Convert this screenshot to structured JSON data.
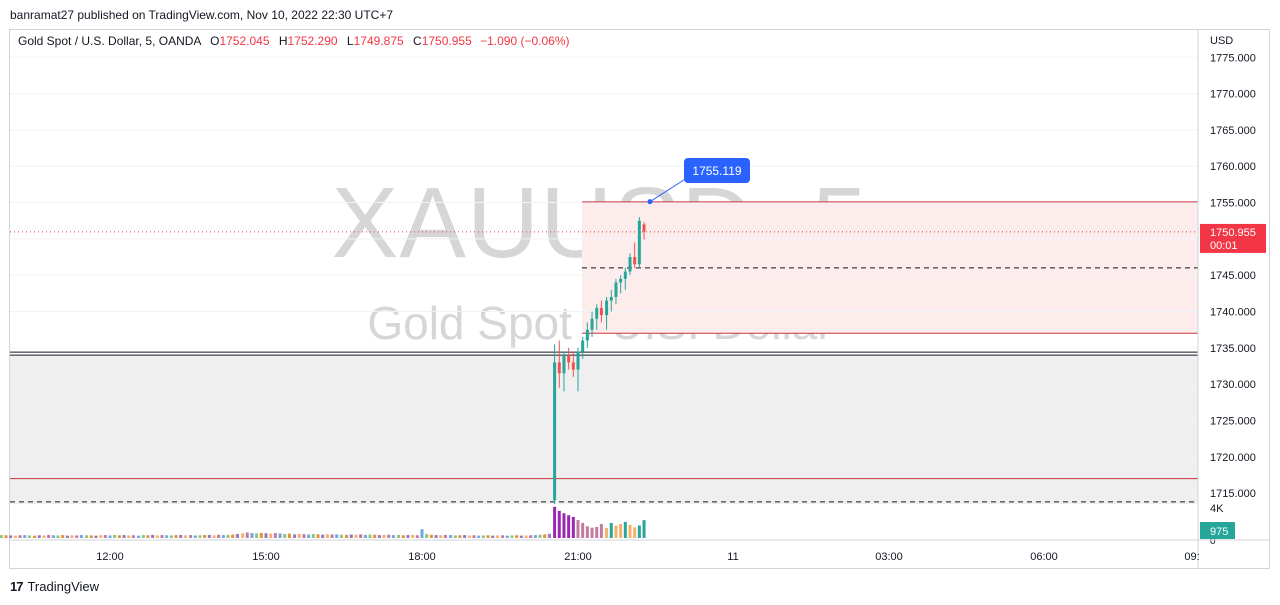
{
  "header": {
    "published_line": "banramat27 published on TradingView.com, Nov 10, 2022 22:30 UTC+7"
  },
  "legend": {
    "symbol": "Gold Spot / U.S. Dollar, 5, OANDA",
    "open_label": "O",
    "open": "1752.045",
    "high_label": "H",
    "high": "1752.290",
    "low_label": "L",
    "low": "1749.875",
    "close_label": "C",
    "close": "1750.955",
    "change": "−1.090 (−0.06%)"
  },
  "watermark": {
    "ticker": "XAUUSD, 5",
    "description": "Gold Spot / U.S. Dollar"
  },
  "footer": {
    "logo": "17",
    "brand": "TradingView"
  },
  "colors": {
    "up": "#26a69a",
    "down": "#ef5350",
    "last_price": "#f23645",
    "callout": "#2962ff",
    "volume_badge": "#26a69a"
  },
  "chart_data": {
    "type": "candlestick",
    "currency": "USD",
    "y_axis_ticks": [
      "1775.000",
      "1770.000",
      "1765.000",
      "1760.000",
      "1755.000",
      "1750.000",
      "1745.000",
      "1740.000",
      "1735.000",
      "1730.000",
      "1725.000",
      "1720.000",
      "1715.000"
    ],
    "ylim": [
      1713.5,
      1776
    ],
    "x_axis_ticks": [
      "12:00",
      "15:00",
      "18:00",
      "21:00",
      "11",
      "03:00",
      "06:00",
      "09:"
    ],
    "last_price": "1750.955",
    "countdown": "00:01",
    "callout_price": "1755.119",
    "volume_axis_label": "4K",
    "volume_axis_zero": "0",
    "last_volume": "975",
    "horizontal_levels": [
      {
        "price": 1755.1,
        "style": "solid",
        "color": "#c9353f"
      },
      {
        "price": 1746.0,
        "style": "dashed",
        "color": "#131722"
      },
      {
        "price": 1737.0,
        "style": "solid",
        "color": "#c9353f"
      },
      {
        "price": 1734.4,
        "style": "solid",
        "color": "#131722"
      },
      {
        "price": 1734.0,
        "style": "solid",
        "color": "#131722"
      },
      {
        "price": 1717.0,
        "style": "solid",
        "color": "#c9353f"
      },
      {
        "price": 1713.8,
        "style": "dashed",
        "color": "#131722"
      }
    ],
    "zones": [
      {
        "from": 1737.0,
        "to": 1755.1,
        "color": "#fdecec"
      },
      {
        "from": 1713.5,
        "to": 1734.0,
        "color": "#efefef"
      }
    ],
    "candles": [
      [
        20.55,
        1714.0,
        1735.5,
        1713.5,
        1733.0
      ],
      [
        20.64,
        1733.0,
        1736.0,
        1729.5,
        1731.5
      ],
      [
        20.73,
        1731.5,
        1734.5,
        1729.0,
        1734.0
      ],
      [
        20.82,
        1734.0,
        1735.0,
        1732.0,
        1733.0
      ],
      [
        20.91,
        1733.0,
        1734.5,
        1731.0,
        1732.0
      ],
      [
        21.0,
        1732.0,
        1735.0,
        1729.0,
        1734.5
      ],
      [
        21.09,
        1734.5,
        1736.5,
        1733.5,
        1736.0
      ],
      [
        21.18,
        1736.0,
        1738.5,
        1735.0,
        1737.5
      ],
      [
        21.27,
        1737.5,
        1740.0,
        1736.5,
        1739.0
      ],
      [
        21.36,
        1739.0,
        1741.0,
        1737.5,
        1740.5
      ],
      [
        21.45,
        1740.5,
        1741.5,
        1738.5,
        1739.5
      ],
      [
        21.55,
        1739.5,
        1742.0,
        1737.5,
        1741.5
      ],
      [
        21.64,
        1741.5,
        1743.0,
        1740.0,
        1742.0
      ],
      [
        21.73,
        1742.0,
        1744.5,
        1741.0,
        1744.0
      ],
      [
        21.82,
        1744.0,
        1745.0,
        1742.5,
        1744.5
      ],
      [
        21.91,
        1744.5,
        1746.0,
        1743.0,
        1745.5
      ],
      [
        22.0,
        1745.5,
        1748.0,
        1745.0,
        1747.5
      ],
      [
        22.09,
        1747.5,
        1749.5,
        1746.0,
        1746.5
      ],
      [
        22.18,
        1746.5,
        1753.0,
        1746.0,
        1752.5
      ],
      [
        22.27,
        1752.0,
        1752.3,
        1749.9,
        1751.0
      ]
    ],
    "volumes": [
      [
        8.0,
        180
      ],
      [
        8.09,
        140
      ],
      [
        8.18,
        160
      ],
      [
        8.27,
        120
      ],
      [
        8.36,
        150
      ],
      [
        8.45,
        130
      ],
      [
        8.55,
        170
      ],
      [
        8.64,
        150
      ],
      [
        8.73,
        140
      ],
      [
        8.82,
        160
      ],
      [
        8.91,
        130
      ],
      [
        9.0,
        150
      ],
      [
        9.09,
        140
      ],
      [
        9.18,
        120
      ],
      [
        9.27,
        160
      ],
      [
        9.36,
        150
      ],
      [
        9.45,
        130
      ],
      [
        9.55,
        170
      ],
      [
        9.64,
        140
      ],
      [
        9.73,
        150
      ],
      [
        9.82,
        120
      ],
      [
        9.91,
        160
      ],
      [
        10.0,
        150
      ],
      [
        10.09,
        140
      ],
      [
        10.18,
        130
      ],
      [
        10.27,
        150
      ],
      [
        10.36,
        160
      ],
      [
        10.45,
        140
      ],
      [
        10.55,
        130
      ],
      [
        10.64,
        150
      ],
      [
        10.73,
        140
      ],
      [
        10.82,
        170
      ],
      [
        10.91,
        150
      ],
      [
        11.0,
        140
      ],
      [
        11.09,
        160
      ],
      [
        11.18,
        130
      ],
      [
        11.27,
        150
      ],
      [
        11.36,
        140
      ],
      [
        11.45,
        160
      ],
      [
        11.55,
        150
      ],
      [
        11.64,
        140
      ],
      [
        11.73,
        130
      ],
      [
        11.82,
        150
      ],
      [
        11.91,
        160
      ],
      [
        12.0,
        140
      ],
      [
        12.09,
        170
      ],
      [
        12.18,
        150
      ],
      [
        12.27,
        160
      ],
      [
        12.36,
        140
      ],
      [
        12.45,
        150
      ],
      [
        12.55,
        130
      ],
      [
        12.64,
        160
      ],
      [
        12.73,
        150
      ],
      [
        12.82,
        170
      ],
      [
        12.91,
        140
      ],
      [
        13.0,
        160
      ],
      [
        13.09,
        150
      ],
      [
        13.18,
        140
      ],
      [
        13.27,
        160
      ],
      [
        13.36,
        170
      ],
      [
        13.45,
        150
      ],
      [
        13.55,
        160
      ],
      [
        13.64,
        140
      ],
      [
        13.73,
        150
      ],
      [
        13.82,
        160
      ],
      [
        13.91,
        170
      ],
      [
        14.0,
        150
      ],
      [
        14.09,
        180
      ],
      [
        14.18,
        160
      ],
      [
        14.27,
        170
      ],
      [
        14.36,
        190
      ],
      [
        14.45,
        220
      ],
      [
        14.55,
        260
      ],
      [
        14.64,
        300
      ],
      [
        14.73,
        270
      ],
      [
        14.82,
        250
      ],
      [
        14.91,
        280
      ],
      [
        15.0,
        260
      ],
      [
        15.09,
        240
      ],
      [
        15.18,
        270
      ],
      [
        15.27,
        250
      ],
      [
        15.36,
        220
      ],
      [
        15.45,
        240
      ],
      [
        15.55,
        200
      ],
      [
        15.64,
        230
      ],
      [
        15.73,
        210
      ],
      [
        15.82,
        190
      ],
      [
        15.91,
        220
      ],
      [
        16.0,
        200
      ],
      [
        16.09,
        180
      ],
      [
        16.18,
        210
      ],
      [
        16.27,
        190
      ],
      [
        16.36,
        200
      ],
      [
        16.45,
        180
      ],
      [
        16.55,
        170
      ],
      [
        16.64,
        190
      ],
      [
        16.73,
        180
      ],
      [
        16.82,
        200
      ],
      [
        16.91,
        170
      ],
      [
        17.0,
        190
      ],
      [
        17.09,
        180
      ],
      [
        17.18,
        160
      ],
      [
        17.27,
        170
      ],
      [
        17.36,
        180
      ],
      [
        17.45,
        160
      ],
      [
        17.55,
        170
      ],
      [
        17.64,
        150
      ],
      [
        17.73,
        160
      ],
      [
        17.82,
        170
      ],
      [
        17.91,
        150
      ],
      [
        18.0,
        480
      ],
      [
        18.09,
        220
      ],
      [
        18.18,
        180
      ],
      [
        18.27,
        160
      ],
      [
        18.36,
        150
      ],
      [
        18.45,
        170
      ],
      [
        18.55,
        160
      ],
      [
        18.64,
        140
      ],
      [
        18.73,
        150
      ],
      [
        18.82,
        160
      ],
      [
        18.91,
        140
      ],
      [
        19.0,
        150
      ],
      [
        19.09,
        130
      ],
      [
        19.18,
        140
      ],
      [
        19.27,
        150
      ],
      [
        19.36,
        130
      ],
      [
        19.45,
        140
      ],
      [
        19.55,
        150
      ],
      [
        19.64,
        130
      ],
      [
        19.73,
        140
      ],
      [
        19.82,
        150
      ],
      [
        19.91,
        130
      ],
      [
        20.0,
        140
      ],
      [
        20.09,
        150
      ],
      [
        20.18,
        160
      ],
      [
        20.27,
        180
      ],
      [
        20.36,
        200
      ],
      [
        20.45,
        230
      ],
      [
        20.55,
        1700
      ],
      [
        20.64,
        1480
      ],
      [
        20.73,
        1350
      ],
      [
        20.82,
        1240
      ],
      [
        20.91,
        1150
      ],
      [
        21.0,
        980
      ],
      [
        21.09,
        820
      ],
      [
        21.18,
        640
      ],
      [
        21.27,
        560
      ],
      [
        21.36,
        600
      ],
      [
        21.45,
        760
      ],
      [
        21.55,
        540
      ],
      [
        21.64,
        820
      ],
      [
        21.73,
        680
      ],
      [
        21.82,
        760
      ],
      [
        21.91,
        880
      ],
      [
        22.0,
        720
      ],
      [
        22.09,
        580
      ],
      [
        22.18,
        680
      ],
      [
        22.27,
        975
      ]
    ]
  }
}
